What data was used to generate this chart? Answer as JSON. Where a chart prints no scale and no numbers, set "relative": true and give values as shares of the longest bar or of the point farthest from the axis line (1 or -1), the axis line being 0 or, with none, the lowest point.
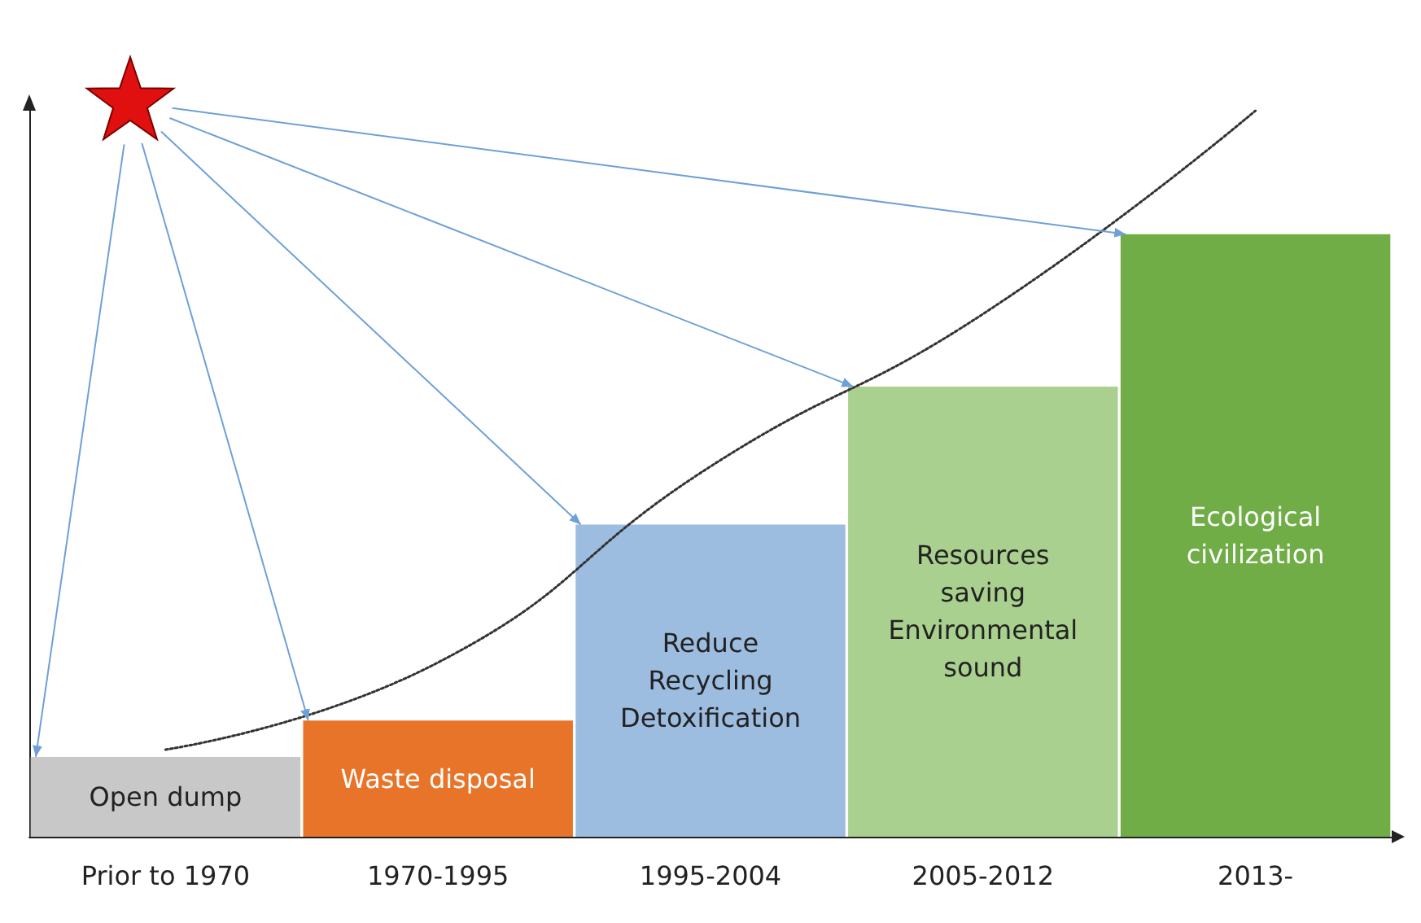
{
  "chart_data": {
    "type": "bar",
    "relative": true,
    "categories": [
      "Prior to 1970",
      "1970-1995",
      "1995-2004",
      "2005-2012",
      "2013-"
    ],
    "series": [
      {
        "colors": [
          "#c8c8c8",
          "#e8742a",
          "#9dbde0",
          "#a9d08e",
          "#70ad47"
        ],
        "values": [
          0.11,
          0.16,
          0.43,
          0.62,
          0.83
        ]
      },
      {
        "type": "line",
        "color": "#333333",
        "line_style": "dotted",
        "marker": "none",
        "values": [
          0.12,
          0.24,
          0.51,
          0.72,
          1
        ]
      }
    ],
    "annotations": [
      "Open dump",
      "Waste disposal",
      "Reduce\nRecycling\nDetoxification",
      "Resources\nsaving\nEnvironmental\nsound",
      "Ecological\ncivilization"
    ]
  }
}
